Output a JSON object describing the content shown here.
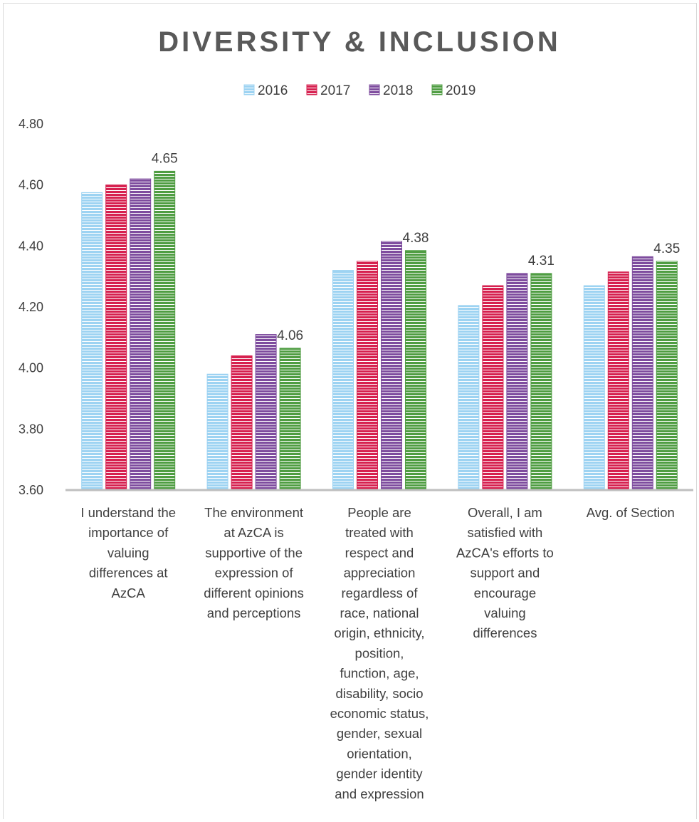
{
  "chart_data": {
    "type": "bar",
    "title": "DIVERSITY & INCLUSION",
    "xlabel": "",
    "ylabel": "",
    "ylim": [
      3.6,
      4.8
    ],
    "yticks": [
      "3.60",
      "3.80",
      "4.00",
      "4.20",
      "4.40",
      "4.60",
      "4.80"
    ],
    "grid": false,
    "legend_position": "top",
    "categories": [
      [
        "I understand the",
        "importance of",
        "valuing",
        "differences at",
        "AzCA"
      ],
      [
        "The environment",
        "at AzCA is",
        "supportive of the",
        "expression of",
        "different opinions",
        "and perceptions"
      ],
      [
        "People are",
        "treated with",
        "respect and",
        "appreciation",
        "regardless of",
        "race, national",
        "origin, ethnicity,",
        "position,",
        "function, age,",
        "disability, socio",
        "economic status,",
        "gender, sexual",
        "orientation,",
        "gender identity",
        "and expression"
      ],
      [
        "Overall, I am",
        "satisfied with",
        "AzCA's efforts to",
        "support and",
        "encourage",
        "valuing",
        "differences"
      ],
      [
        "Avg. of Section"
      ]
    ],
    "series": [
      {
        "name": "2016",
        "color": "#9dd3f2",
        "values": [
          4.575,
          3.98,
          4.32,
          4.205,
          4.27
        ]
      },
      {
        "name": "2017",
        "color": "#d6204f",
        "values": [
          4.6,
          4.04,
          4.35,
          4.27,
          4.315
        ]
      },
      {
        "name": "2018",
        "color": "#7e4c9e",
        "values": [
          4.62,
          4.11,
          4.415,
          4.31,
          4.365
        ]
      },
      {
        "name": "2019",
        "color": "#4f9d42",
        "values": [
          4.645,
          4.065,
          4.385,
          4.31,
          4.35
        ]
      }
    ],
    "data_labels": [
      {
        "series": "2019",
        "category_index": 0,
        "text": "4.65"
      },
      {
        "series": "2019",
        "category_index": 1,
        "text": "4.06"
      },
      {
        "series": "2019",
        "category_index": 2,
        "text": "4.38"
      },
      {
        "series": "2019",
        "category_index": 3,
        "text": "4.31"
      },
      {
        "series": "2019",
        "category_index": 4,
        "text": "4.35"
      }
    ]
  },
  "colors": {
    "title": "#595959",
    "text": "#404040",
    "axis": "#bfbfbf"
  }
}
